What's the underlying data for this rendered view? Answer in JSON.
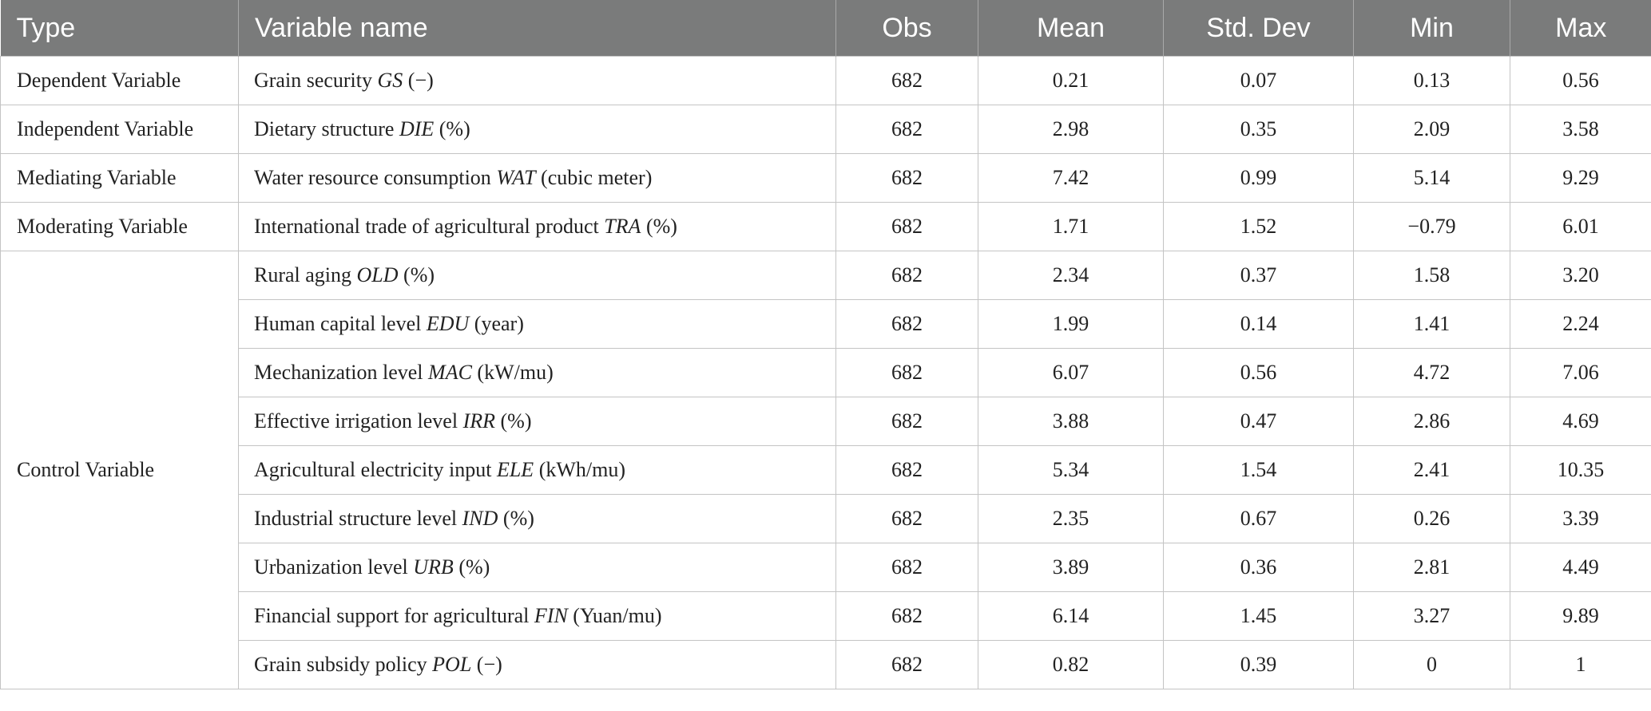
{
  "headers": {
    "type": "Type",
    "variable": "Variable name",
    "obs": "Obs",
    "mean": "Mean",
    "std": "Std. Dev",
    "min": "Min",
    "max": "Max"
  },
  "groups": {
    "dependent": "Dependent Variable",
    "independent": "Independent Variable",
    "mediating": "Mediating Variable",
    "moderating": "Moderating Variable",
    "control": "Control Variable"
  },
  "rows": [
    {
      "name": "Grain security ",
      "sym": "GS",
      "unit": " (−)",
      "obs": "682",
      "mean": "0.21",
      "std": "0.07",
      "min": "0.13",
      "max": "0.56"
    },
    {
      "name": "Dietary structure ",
      "sym": "DIE",
      "unit": " (%)",
      "obs": "682",
      "mean": "2.98",
      "std": "0.35",
      "min": "2.09",
      "max": "3.58"
    },
    {
      "name": "Water resource consumption ",
      "sym": "WAT",
      "unit": " (cubic meter)",
      "obs": "682",
      "mean": "7.42",
      "std": "0.99",
      "min": "5.14",
      "max": "9.29"
    },
    {
      "name": "International trade of agricultural product ",
      "sym": "TRA",
      "unit": " (%)",
      "obs": "682",
      "mean": "1.71",
      "std": "1.52",
      "min": "−0.79",
      "max": "6.01"
    },
    {
      "name": "Rural aging ",
      "sym": "OLD",
      "unit": " (%)",
      "obs": "682",
      "mean": "2.34",
      "std": "0.37",
      "min": "1.58",
      "max": "3.20"
    },
    {
      "name": "Human capital level ",
      "sym": "EDU",
      "unit": " (year)",
      "obs": "682",
      "mean": "1.99",
      "std": "0.14",
      "min": "1.41",
      "max": "2.24"
    },
    {
      "name": "Mechanization level ",
      "sym": "MAC",
      "unit": " (kW/mu)",
      "obs": "682",
      "mean": "6.07",
      "std": "0.56",
      "min": "4.72",
      "max": "7.06"
    },
    {
      "name": "Effective irrigation level ",
      "sym": "IRR",
      "unit": " (%)",
      "obs": "682",
      "mean": "3.88",
      "std": "0.47",
      "min": "2.86",
      "max": "4.69"
    },
    {
      "name": "Agricultural electricity input ",
      "sym": "ELE",
      "unit": " (kWh/mu)",
      "obs": "682",
      "mean": "5.34",
      "std": "1.54",
      "min": "2.41",
      "max": "10.35"
    },
    {
      "name": "Industrial structure level ",
      "sym": "IND",
      "unit": " (%)",
      "obs": "682",
      "mean": "2.35",
      "std": "0.67",
      "min": "0.26",
      "max": "3.39"
    },
    {
      "name": "Urbanization level ",
      "sym": "URB",
      "unit": " (%)",
      "obs": "682",
      "mean": "3.89",
      "std": "0.36",
      "min": "2.81",
      "max": "4.49"
    },
    {
      "name": "Financial support for agricultural ",
      "sym": "FIN",
      "unit": " (Yuan/mu)",
      "obs": "682",
      "mean": "6.14",
      "std": "1.45",
      "min": "3.27",
      "max": "9.89"
    },
    {
      "name": "Grain subsidy policy ",
      "sym": "POL",
      "unit": " (−)",
      "obs": "682",
      "mean": "0.82",
      "std": "0.39",
      "min": "0",
      "max": "1"
    }
  ]
}
